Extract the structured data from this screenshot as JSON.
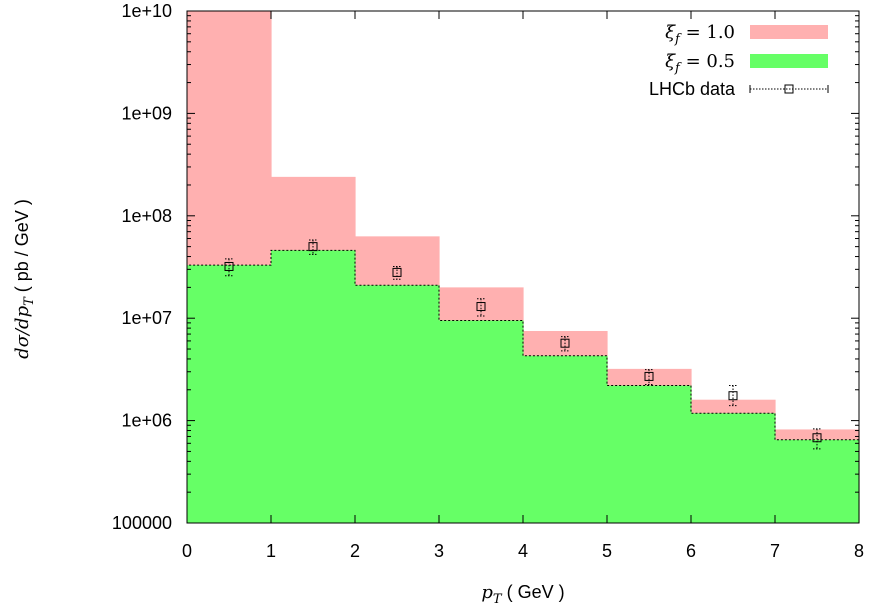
{
  "chart_data": {
    "type": "bar",
    "xlabel": "p_T ( GeV )",
    "ylabel": "dσ/dp_T ( pb / GeV )",
    "xlim": [
      0,
      8
    ],
    "ylim": [
      100000,
      10000000000
    ],
    "yscale": "log",
    "x_ticks": [
      "0",
      "1",
      "2",
      "3",
      "4",
      "5",
      "6",
      "7",
      "8"
    ],
    "y_ticks": [
      "100000",
      "1e+06",
      "1e+07",
      "1e+08",
      "1e+09",
      "1e+10"
    ],
    "bin_edges": [
      0,
      1,
      2,
      3,
      4,
      5,
      6,
      7,
      8
    ],
    "series": [
      {
        "name": "ξ_f = 1.0",
        "color": "#ffb0b0",
        "style": "filled-histogram",
        "values": [
          10000000000,
          240000000,
          63000000,
          20000000,
          7500000,
          3200000,
          1600000,
          820000
        ]
      },
      {
        "name": "ξ_f = 0.5",
        "color": "#66ff66",
        "style": "filled-histogram",
        "values": [
          33000000,
          46000000,
          21000000,
          9500000,
          4300000,
          2200000,
          1180000,
          650000
        ]
      },
      {
        "name": "LHCb data",
        "color": "#000000",
        "style": "points-with-errors",
        "x": [
          0.5,
          1.5,
          2.5,
          3.5,
          4.5,
          5.5,
          6.5,
          7.5
        ],
        "values": [
          32000000,
          50000000,
          28000000,
          13000000,
          5700000,
          2700000,
          1750000,
          680000
        ],
        "err_low": [
          6000000,
          8000000,
          4000000,
          2500000,
          900000,
          450000,
          350000,
          150000
        ],
        "err_high": [
          6000000,
          8000000,
          4000000,
          2500000,
          900000,
          450000,
          450000,
          150000
        ]
      }
    ],
    "legend": {
      "placement": "top-right",
      "entries": [
        {
          "pre": "ξ",
          "sub": "f",
          "post": " = 1.0"
        },
        {
          "pre": "ξ",
          "sub": "f",
          "post": " = 0.5"
        },
        {
          "text": "LHCb data"
        }
      ]
    },
    "axis_labels": {
      "x_var": "p",
      "x_sub": "T",
      "x_unit": " ( GeV )",
      "y_var": "dσ/dp",
      "y_sub": "T",
      "y_unit": " ( pb / GeV )"
    },
    "grid": false
  }
}
